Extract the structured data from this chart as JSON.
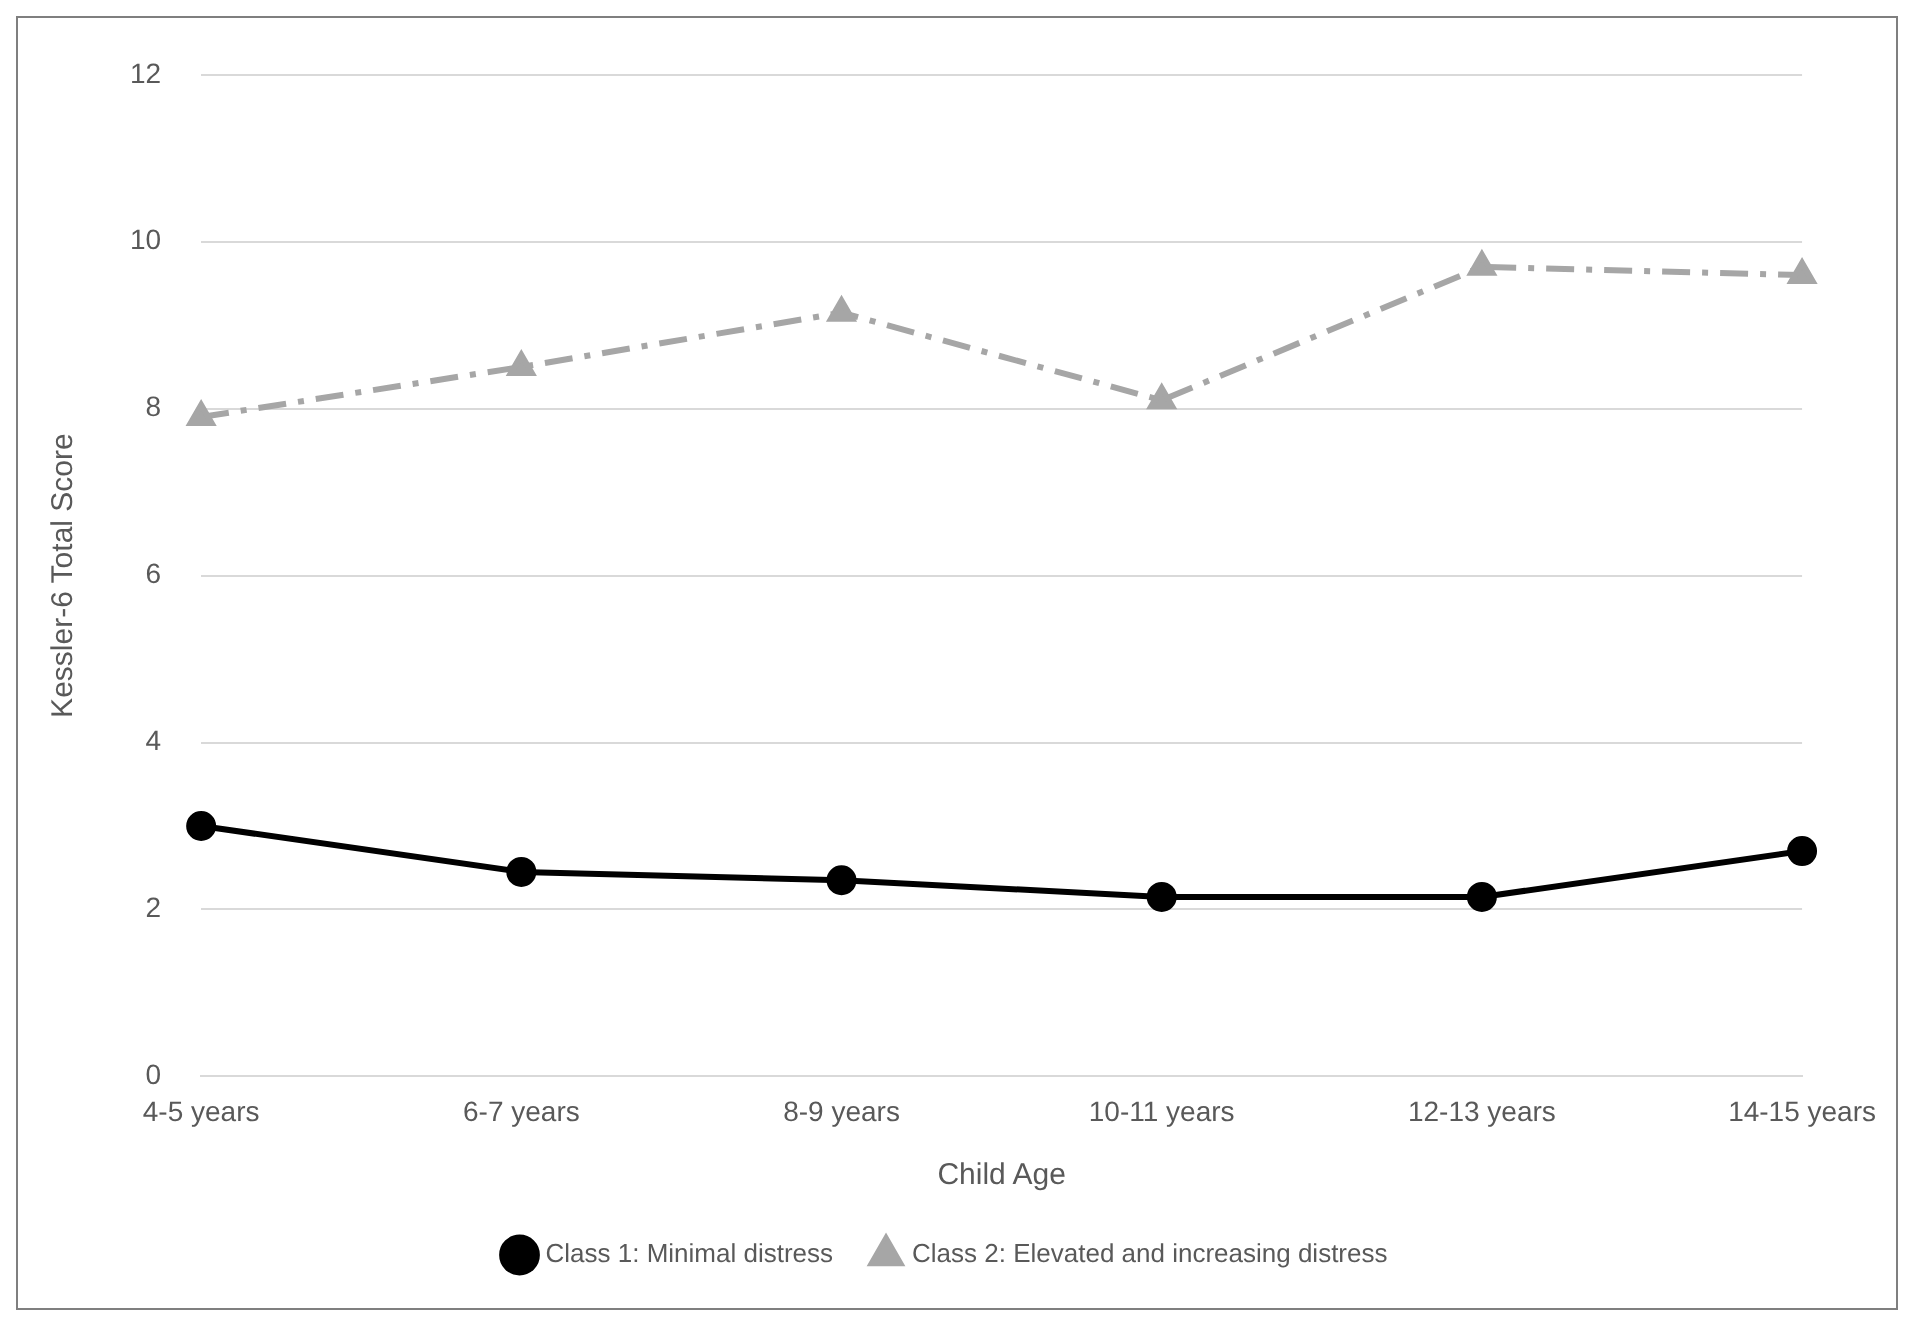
{
  "chart_data": {
    "type": "line",
    "xlabel": "Child Age",
    "ylabel": "Kessler-6 Total Score",
    "categories": [
      "4-5 years",
      "6-7 years",
      "8-9 years",
      "10-11 years",
      "12-13 years",
      "14-15 years"
    ],
    "series": [
      {
        "name": "Class 1: Minimal distress",
        "color": "#000000",
        "values": [
          3.0,
          2.45,
          2.35,
          2.15,
          2.15,
          2.7
        ],
        "marker": "circle",
        "line_style": "solid"
      },
      {
        "name": "Class 2: Elevated and increasing distress",
        "color": "#a6a6a6",
        "values": [
          7.9,
          8.5,
          9.15,
          8.1,
          9.7,
          9.6
        ],
        "marker": "triangle",
        "line_style": "dashed"
      }
    ],
    "ylim": [
      0,
      12
    ],
    "yticks": [
      0,
      2,
      4,
      6,
      8,
      10,
      12
    ],
    "grid": "y",
    "legend": "bottom"
  }
}
